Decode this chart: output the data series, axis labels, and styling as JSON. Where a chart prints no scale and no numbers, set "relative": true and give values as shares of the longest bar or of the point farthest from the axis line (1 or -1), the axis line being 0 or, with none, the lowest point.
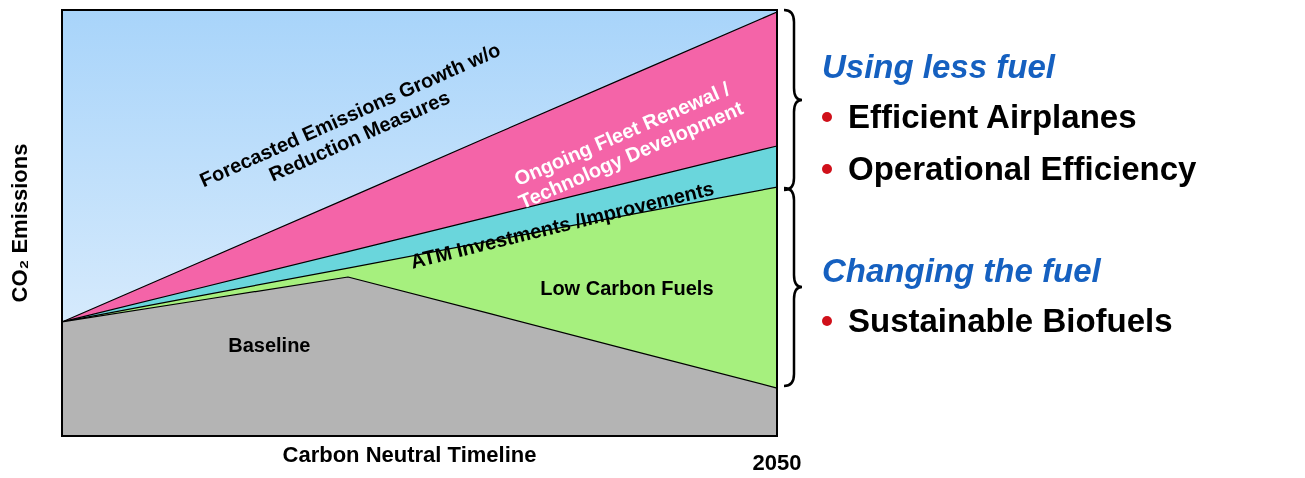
{
  "chart_data": {
    "type": "area",
    "relative": true,
    "xlabel": "Carbon Neutral Timeline",
    "ylabel": "CO₂ Emissions",
    "categories": [
      null,
      null,
      null,
      null,
      null,
      null
    ],
    "grid": false,
    "legend": false,
    "series": [
      {
        "name": "Ongoing Fleet Renewal / Technology Development",
        "color": "#f464a8",
        "values": [
          0.269,
          0.415,
          0.561,
          0.708,
          0.854,
          1
        ]
      },
      {
        "name": "ATM Investments /Improvements",
        "color": "#6ad6dc",
        "values": [
          0.269,
          0.352,
          0.435,
          0.518,
          0.601,
          0.684
        ]
      },
      {
        "name": "Low Carbon Fuels",
        "color": "#a6f07e",
        "values": [
          0.269,
          0.333,
          0.396,
          0.46,
          0.524,
          0.587
        ]
      },
      {
        "name": "Baseline",
        "color": "#b4b4b4",
        "values": [
          0.269,
          0.322,
          0.375,
          0.288,
          0.2,
          0.113
        ]
      }
    ],
    "annotations": [
      "Forecasted Emissions Growth w/o Reduction Measures",
      "2050",
      "Using less fuel",
      "Efficient Airplanes",
      "Operational Efficiency",
      "Changing the fuel",
      "Sustainable Biofuels"
    ]
  }
}
